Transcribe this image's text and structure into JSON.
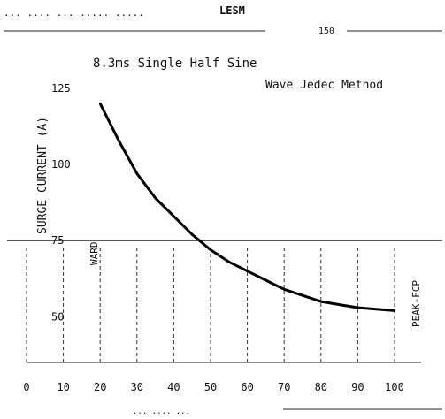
{
  "header": {
    "left_text": "... .... ... ..... .....",
    "brand": "LESM",
    "sub_text": "150"
  },
  "footer": {
    "caption": "... .... ..."
  },
  "chart_data": {
    "type": "line",
    "title": "8.3ms Single Half Sine",
    "subtitle": "Wave Jedec Method",
    "ylabel": "SURGE CURRENT (A)",
    "left_side_label": "WARD",
    "right_side_label": "PEAK-FCP",
    "xlim": [
      0,
      100
    ],
    "ylim": [
      0,
      125
    ],
    "x_ticks": [
      "0",
      "10",
      "20",
      "30",
      "40",
      "50",
      "60",
      "70",
      "80",
      "90",
      "100"
    ],
    "x_tick_values": [
      0,
      10,
      20,
      30,
      40,
      50,
      60,
      70,
      80,
      90,
      100
    ],
    "y_ticks": [
      "125",
      "100",
      "75",
      "50"
    ],
    "y_tick_values": [
      125,
      100,
      75,
      50
    ],
    "reference_line": 75,
    "series": [
      {
        "x": [
          20,
          25,
          30,
          35,
          40,
          45,
          50,
          55,
          60,
          65,
          70,
          75,
          80,
          85,
          90,
          95,
          100
        ],
        "y": [
          120,
          108,
          97,
          89,
          83,
          77,
          72,
          68,
          65,
          62,
          59,
          57,
          55,
          54,
          53,
          52.5,
          52
        ],
        "color": "#000000"
      }
    ]
  }
}
